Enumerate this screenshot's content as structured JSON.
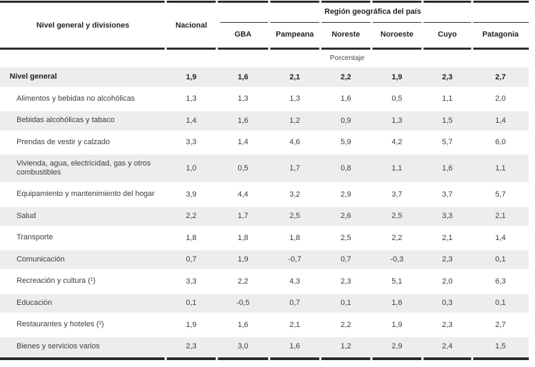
{
  "table": {
    "corner_header": "Nivel general y divisiones",
    "national_header": "Nacional",
    "region_group_header": "Región geográfica del país",
    "region_columns": [
      "GBA",
      "Pampeana",
      "Noreste",
      "Noroeste",
      "Cuyo",
      "Patagonia"
    ],
    "unit_label": "Porcentaje",
    "value_columns": [
      "Nacional",
      "GBA",
      "Pampeana",
      "Noreste",
      "Noroeste",
      "Cuyo",
      "Patagonia"
    ],
    "rows": [
      {
        "label": "Nivel general",
        "bold": true,
        "values": [
          "1,9",
          "1,6",
          "2,1",
          "2,2",
          "1,9",
          "2,3",
          "2,7"
        ]
      },
      {
        "label": "Alimentos y bebidas no alcohólicas",
        "values": [
          "1,3",
          "1,3",
          "1,3",
          "1,6",
          "0,5",
          "1,1",
          "2,0"
        ]
      },
      {
        "label": "Bebidas alcohólicas y tabaco",
        "values": [
          "1,4",
          "1,6",
          "1,2",
          "0,9",
          "1,3",
          "1,5",
          "1,4"
        ]
      },
      {
        "label": "Prendas de vestir y calzado",
        "values": [
          "3,3",
          "1,4",
          "4,6",
          "5,9",
          "4,2",
          "5,7",
          "6,0"
        ]
      },
      {
        "label": "Vivienda, agua, electricidad, gas y otros combustibles",
        "tall": true,
        "values": [
          "1,0",
          "0,5",
          "1,7",
          "0,8",
          "1,1",
          "1,6",
          "1,1"
        ]
      },
      {
        "label": "Equipamiento y mantenimiento del hogar",
        "values": [
          "3,9",
          "4,4",
          "3,2",
          "2,9",
          "3,7",
          "3,7",
          "5,7"
        ]
      },
      {
        "label": "Salud",
        "values": [
          "2,2",
          "1,7",
          "2,5",
          "2,6",
          "2,5",
          "3,3",
          "2,1"
        ]
      },
      {
        "label": "Transporte",
        "values": [
          "1,8",
          "1,8",
          "1,8",
          "2,5",
          "2,2",
          "2,1",
          "1,4"
        ]
      },
      {
        "label": "Comunicación",
        "values": [
          "0,7",
          "1,9",
          "-0,7",
          "0,7",
          "-0,3",
          "2,3",
          "0,1"
        ]
      },
      {
        "label": "Recreación y cultura (¹)",
        "values": [
          "3,3",
          "2,2",
          "4,3",
          "2,3",
          "5,1",
          "2,0",
          "6,3"
        ]
      },
      {
        "label": "Educación",
        "values": [
          "0,1",
          "-0,5",
          "0,7",
          "0,1",
          "1,6",
          "0,3",
          "0,1"
        ]
      },
      {
        "label": "Restaurantes y hoteles (²)",
        "values": [
          "1,9",
          "1,6",
          "2,1",
          "2,2",
          "1,9",
          "2,3",
          "2,7"
        ]
      },
      {
        "label": "Bienes y servicios varios",
        "values": [
          "2,3",
          "3,0",
          "1,6",
          "1,2",
          "2,9",
          "2,4",
          "1,5"
        ]
      }
    ],
    "colors": {
      "row_shade": "#ededed",
      "rule_black": "#2b2a29",
      "text": "#3c3c3b",
      "text_bold": "#231f20"
    }
  }
}
